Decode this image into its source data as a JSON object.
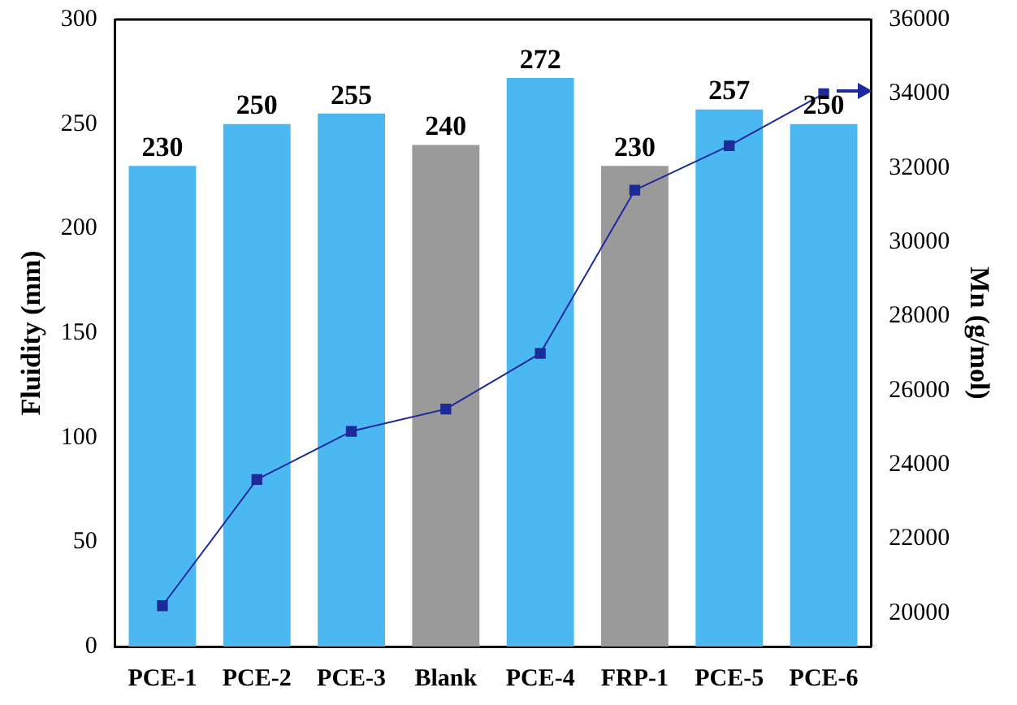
{
  "chart_data": {
    "type": "bar",
    "categories": [
      "PCE-1",
      "PCE-2",
      "PCE-3",
      "Blank",
      "PCE-4",
      "FRP-1",
      "PCE-5",
      "PCE-6"
    ],
    "series": [
      {
        "colors": [
          "#4cb8f2",
          "#4cb8f2",
          "#4cb8f2",
          "#9a9a9a",
          "#4cb8f2",
          "#9a9a9a",
          "#4cb8f2",
          "#4cb8f2"
        ],
        "values": [
          230,
          250,
          255,
          240,
          272,
          230,
          257,
          250
        ],
        "value_labels": [
          "230",
          "250",
          "255",
          "240",
          "272",
          "230",
          "257",
          "250"
        ]
      },
      {
        "type": "line",
        "axis": "y2",
        "color": "#1c2a9c",
        "values": [
          20200,
          23600,
          24900,
          25500,
          27000,
          31400,
          32600,
          34000
        ]
      }
    ],
    "ylabel": "Fluidity (mm)",
    "y2label": "Mn (g/mol)",
    "ylim": [
      0,
      300
    ],
    "yticks": [
      0,
      50,
      100,
      150,
      200,
      250,
      300
    ],
    "y2lim": [
      19100,
      36000
    ],
    "y2ticks": [
      20000,
      22000,
      24000,
      26000,
      28000,
      30000,
      32000,
      34000,
      36000
    ],
    "grid": false,
    "legend": false,
    "marker": "square",
    "line_style": "solid"
  }
}
